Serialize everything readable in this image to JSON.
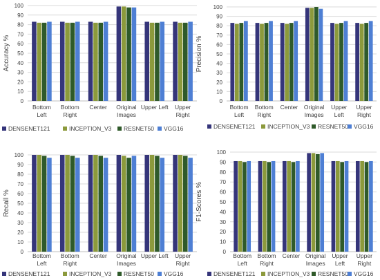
{
  "colors": {
    "DENSENET121": "#35357a",
    "INCEPTION_V3": "#8c9a3c",
    "RESNET50": "#2f5a2a",
    "VGG16": "#4e7fd4",
    "grid": "#d9d9d9",
    "axis": "#bfbfbf",
    "text": "#404040"
  },
  "chart_data": [
    {
      "type": "bar",
      "ylabel": "Accuracy %",
      "ylim": [
        0,
        100
      ],
      "yticks": [
        0,
        10,
        20,
        30,
        40,
        50,
        60,
        70,
        80,
        90,
        100
      ],
      "grid": true,
      "legend_position": "bottom",
      "categories": [
        [
          "Bottom",
          "Left"
        ],
        [
          "Bottom",
          "Right"
        ],
        [
          "Center"
        ],
        [
          "Original",
          "Images"
        ],
        [
          "Upper Left"
        ],
        [
          "Upper",
          "Right"
        ]
      ],
      "series": [
        {
          "name": "DENSENET121",
          "values": [
            83,
            83,
            83,
            99,
            83,
            83
          ]
        },
        {
          "name": "INCEPTION_V3",
          "values": [
            82,
            82,
            82,
            99,
            82,
            82
          ]
        },
        {
          "name": "RESNET50",
          "values": [
            82,
            82,
            82,
            98,
            82,
            82
          ]
        },
        {
          "name": "VGG16",
          "values": [
            83,
            83,
            83,
            98,
            83,
            83
          ]
        }
      ]
    },
    {
      "type": "bar",
      "ylabel": "Precision %",
      "ylim": [
        0,
        100
      ],
      "yticks": [
        0,
        10,
        20,
        30,
        40,
        50,
        60,
        70,
        80,
        90,
        100
      ],
      "grid": true,
      "legend_position": "bottom",
      "categories": [
        [
          "Bottom",
          "Left"
        ],
        [
          "Bottom",
          "Right"
        ],
        [
          "Center"
        ],
        [
          "Original",
          "Images"
        ],
        [
          "Upper",
          "Left"
        ],
        [
          "Upper",
          "Right"
        ]
      ],
      "series": [
        {
          "name": "DENSENET121",
          "values": [
            83,
            83,
            83,
            99,
            83,
            83
          ]
        },
        {
          "name": "INCEPTION_V3",
          "values": [
            82,
            82,
            82,
            99,
            82,
            82
          ]
        },
        {
          "name": "RESNET50",
          "values": [
            83,
            83,
            83,
            100,
            83,
            83
          ]
        },
        {
          "name": "VGG16",
          "values": [
            85,
            85,
            85,
            98,
            85,
            85
          ]
        }
      ]
    },
    {
      "type": "bar",
      "ylabel": "Recall %",
      "ylim": [
        0,
        100
      ],
      "yticks": [
        0,
        10,
        20,
        30,
        40,
        50,
        60,
        70,
        80,
        90,
        100
      ],
      "grid": true,
      "legend_position": "bottom",
      "categories": [
        [
          "Bottom",
          "Left"
        ],
        [
          "Bottom",
          "Right"
        ],
        [
          "Center"
        ],
        [
          "Original",
          "Images"
        ],
        [
          "Upper Left"
        ],
        [
          "Upper",
          "Right"
        ]
      ],
      "series": [
        {
          "name": "DENSENET121",
          "values": [
            100,
            100,
            100,
            100,
            100,
            100
          ]
        },
        {
          "name": "INCEPTION_V3",
          "values": [
            100,
            100,
            100,
            99,
            100,
            100
          ]
        },
        {
          "name": "RESNET50",
          "values": [
            99,
            99,
            99,
            97,
            99,
            99
          ]
        },
        {
          "name": "VGG16",
          "values": [
            97,
            97,
            97,
            99,
            97,
            97
          ]
        }
      ]
    },
    {
      "type": "bar",
      "ylabel": "F1-Scores %",
      "ylim": [
        0,
        100
      ],
      "yticks": [
        0,
        10,
        20,
        30,
        40,
        50,
        60,
        70,
        80,
        90,
        100
      ],
      "grid": true,
      "legend_position": "bottom",
      "categories": [
        [
          "Bottom",
          "Left"
        ],
        [
          "Bottom",
          "Right"
        ],
        [
          "Center"
        ],
        [
          "Original",
          "Images"
        ],
        [
          "Upper",
          "Left"
        ],
        [
          "Upper",
          "Right"
        ]
      ],
      "series": [
        {
          "name": "DENSENET121",
          "values": [
            91,
            91,
            91,
            99,
            91,
            91
          ]
        },
        {
          "name": "INCEPTION_V3",
          "values": [
            91,
            91,
            91,
            99,
            91,
            91
          ]
        },
        {
          "name": "RESNET50",
          "values": [
            90,
            90,
            90,
            98,
            90,
            90
          ]
        },
        {
          "name": "VGG16",
          "values": [
            91,
            91,
            91,
            99,
            91,
            91
          ]
        }
      ]
    }
  ]
}
